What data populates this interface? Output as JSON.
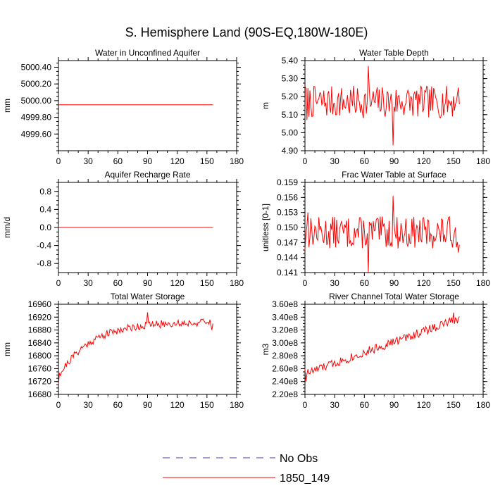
{
  "figure": {
    "title": "S. Hemisphere Land (90S-EQ,180W-180E)"
  },
  "legend": {
    "items": [
      {
        "label": "No Obs",
        "color": "#3b3bb0",
        "dashed": true
      },
      {
        "label": "1850_149",
        "color": "#ff0000",
        "dashed": false
      }
    ]
  },
  "chart_data": [
    {
      "type": "line",
      "title": "Water in Unconfined Aquifer",
      "ylabel": "mm",
      "xlim": [
        0,
        180
      ],
      "ylim": [
        4999.4,
        5000.48
      ],
      "xticks": [
        0,
        30,
        60,
        90,
        120,
        150,
        180
      ],
      "xtick_labels": [
        "0",
        "30",
        "60",
        "90",
        "120",
        "150",
        "180"
      ],
      "yticks": [
        4999.6,
        4999.8,
        5000.0,
        5000.2,
        5000.4
      ],
      "ytick_labels": [
        "4999.60",
        "4999.80",
        "5000.00",
        "5000.20",
        "5000.40"
      ],
      "series": [
        {
          "name": "1850_149",
          "color": "#ff0000",
          "gen": "flat",
          "base": 4999.95,
          "amp": 0,
          "seed": 1
        }
      ]
    },
    {
      "type": "line",
      "title": "Water Table Depth",
      "ylabel": "m",
      "xlim": [
        0,
        180
      ],
      "ylim": [
        4.9,
        5.4
      ],
      "xticks": [
        0,
        30,
        60,
        90,
        120,
        150,
        180
      ],
      "xtick_labels": [
        "0",
        "30",
        "60",
        "90",
        "120",
        "150",
        "180"
      ],
      "yticks": [
        4.9,
        5.0,
        5.1,
        5.2,
        5.3,
        5.4
      ],
      "ytick_labels": [
        "4.90",
        "5.00",
        "5.10",
        "5.20",
        "5.30",
        "5.40"
      ],
      "series": [
        {
          "name": "1850_149",
          "color": "#ff0000",
          "gen": "noise",
          "base": 5.17,
          "amp": 0.09,
          "trend": 0,
          "seed": 7,
          "fixed": [
            [
              0,
              5.26
            ],
            [
              2,
              5.07
            ],
            [
              64,
              5.37
            ],
            [
              89,
              4.93
            ],
            [
              153,
              5.17
            ],
            [
              155,
              5.25
            ]
          ]
        }
      ]
    },
    {
      "type": "line",
      "title": "Aquifer Recharge Rate",
      "ylabel": "mm/d",
      "xlim": [
        0,
        180
      ],
      "ylim": [
        -1.0,
        1.0
      ],
      "xticks": [
        0,
        30,
        60,
        90,
        120,
        150,
        180
      ],
      "xtick_labels": [
        "0",
        "30",
        "60",
        "90",
        "120",
        "150",
        "180"
      ],
      "yticks": [
        -0.8,
        -0.4,
        0.0,
        0.4,
        0.8
      ],
      "ytick_labels": [
        "-0.8",
        "-0.4",
        "0.0",
        "0.4",
        "0.8"
      ],
      "series": [
        {
          "name": "1850_149",
          "color": "#ff0000",
          "gen": "flat",
          "base": 0.0,
          "amp": 0,
          "seed": 2
        }
      ]
    },
    {
      "type": "line",
      "title": "Frac Water Table at Surface",
      "ylabel": "unitless [0-1]",
      "xlim": [
        0,
        180
      ],
      "ylim": [
        0.141,
        0.159
      ],
      "xticks": [
        0,
        30,
        60,
        90,
        120,
        150,
        180
      ],
      "xtick_labels": [
        "0",
        "30",
        "60",
        "90",
        "120",
        "150",
        "180"
      ],
      "yticks": [
        0.141,
        0.144,
        0.147,
        0.15,
        0.153,
        0.156,
        0.159
      ],
      "ytick_labels": [
        "0.141",
        "0.144",
        "0.147",
        "0.150",
        "0.153",
        "0.156",
        "0.159"
      ],
      "series": [
        {
          "name": "1850_149",
          "color": "#ff0000",
          "gen": "noise",
          "base": 0.149,
          "amp": 0.0032,
          "trend": 0,
          "seed": 13,
          "fixed": [
            [
              0,
              0.1455
            ],
            [
              3,
              0.153
            ],
            [
              64,
              0.141
            ],
            [
              89,
              0.1563
            ],
            [
              155,
              0.145
            ]
          ]
        }
      ]
    },
    {
      "type": "line",
      "title": "Total Water Storage",
      "ylabel": "mm",
      "xlim": [
        0,
        180
      ],
      "ylim": [
        16680,
        16960
      ],
      "xticks": [
        0,
        30,
        60,
        90,
        120,
        150,
        180
      ],
      "xtick_labels": [
        "0",
        "30",
        "60",
        "90",
        "120",
        "150",
        "180"
      ],
      "yticks": [
        16680,
        16720,
        16760,
        16800,
        16840,
        16880,
        16920,
        16960
      ],
      "ytick_labels": [
        "16680",
        "16720",
        "16760",
        "16800",
        "16840",
        "16880",
        "16920",
        "16960"
      ],
      "series": [
        {
          "name": "1850_149",
          "color": "#ff0000",
          "gen": "saturate",
          "start": 16735,
          "end": 16905,
          "tau": 32,
          "amp": 12,
          "seed": 21,
          "fixed": [
            [
              0,
              16712
            ],
            [
              1,
              16745
            ],
            [
              90,
              16935
            ],
            [
              155,
              16880
            ]
          ]
        }
      ]
    },
    {
      "type": "line",
      "title": "River Channel Total Water Storage",
      "ylabel": "m3",
      "xlim": [
        0,
        180
      ],
      "ylim": [
        220000000.0,
        360000000.0
      ],
      "xticks": [
        0,
        30,
        60,
        90,
        120,
        150,
        180
      ],
      "xtick_labels": [
        "0",
        "30",
        "60",
        "90",
        "120",
        "150",
        "180"
      ],
      "yticks": [
        220000000.0,
        240000000.0,
        260000000.0,
        280000000.0,
        300000000.0,
        320000000.0,
        340000000.0,
        360000000.0
      ],
      "ytick_labels": [
        "2.20e8",
        "2.40e8",
        "2.60e8",
        "2.80e8",
        "3.00e8",
        "3.20e8",
        "3.40e8",
        "3.60e8"
      ],
      "series": [
        {
          "name": "1850_149",
          "color": "#ff0000",
          "gen": "linear",
          "start": 252000000.0,
          "end": 338000000.0,
          "amp": 7000000.0,
          "seed": 33,
          "fixed": [
            [
              0,
              260000000.0
            ],
            [
              1,
              240000000.0
            ],
            [
              150,
              347000000.0
            ],
            [
              155,
              338000000.0
            ]
          ]
        }
      ]
    }
  ]
}
